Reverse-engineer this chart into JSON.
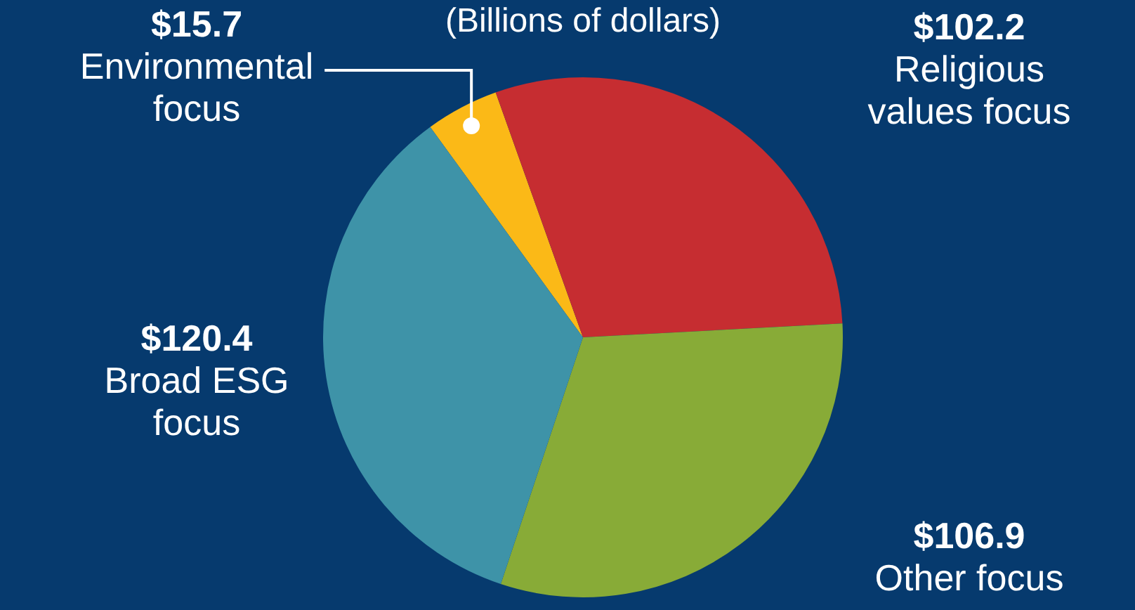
{
  "chart_data": {
    "type": "pie",
    "title": "(Billions of dollars)",
    "categories": [
      "Environmental focus",
      "Religious values focus",
      "Other focus",
      "Broad ESG focus"
    ],
    "values": [
      15.7,
      102.2,
      106.9,
      120.4
    ],
    "value_labels": [
      "$15.7",
      "$102.2",
      "$106.9",
      "$120.4"
    ],
    "colors": [
      "#fbb917",
      "#c62d31",
      "#88ab37",
      "#3e93a8"
    ],
    "legend": false
  }
}
